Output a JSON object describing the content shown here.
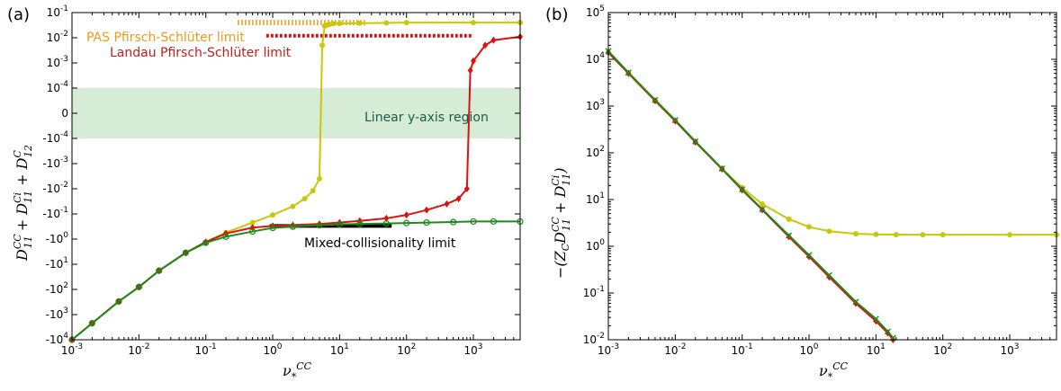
{
  "chart_data": [
    {
      "type": "line",
      "panel_label": "(a)",
      "xlabel": "ν*CC",
      "ylabel": "D11CC + D11Ci + D12C",
      "x_scale": "log",
      "xlim": [
        0.001,
        5000
      ],
      "y_scale": "symlog",
      "y_linear_threshold": 0.0001,
      "ylim": [
        -10000,
        0.1
      ],
      "x_tick_labels": [
        "10-3",
        "10-2",
        "10-1",
        "100",
        "101",
        "102",
        "103"
      ],
      "y_tick_labels": [
        "-104",
        "-103",
        "-102",
        "-101",
        "-100",
        "-10-1",
        "-10-2",
        "-10-3",
        "-10-4",
        "0",
        "10-4",
        "10-3",
        "10-2",
        "10-1"
      ],
      "linear_region": {
        "label": "Linear y-axis region",
        "y_range": [
          -0.0001,
          0.0001
        ],
        "color": "#d6ecd6",
        "text_color": "#1a5c4a"
      },
      "reference_lines": [
        {
          "label": "PAS Pfirsch-Schlüter limit",
          "y": 0.04,
          "x_range": [
            0.3,
            25
          ],
          "color": "#ee9a1a"
        },
        {
          "label": "Landau Pfirsch-Schlüter limit",
          "y": 0.012,
          "x_range": [
            0.8,
            1000
          ],
          "color": "#c81a1a"
        },
        {
          "label": "Mixed-collisionality limit",
          "y": -0.3,
          "x_range": [
            0.9,
            60
          ],
          "color": "#000000"
        }
      ],
      "series": [
        {
          "color": "#c8c80a",
          "marker": "circle",
          "x": [
            0.001,
            0.002,
            0.005,
            0.01,
            0.02,
            0.05,
            0.1,
            0.2,
            0.5,
            1,
            2,
            3,
            4,
            5,
            5.5,
            6,
            6.5,
            7,
            8,
            10,
            20,
            50,
            100,
            1000,
            5000
          ],
          "y": [
            -10000,
            -2200,
            -300,
            -80,
            -18,
            -3.5,
            -1.3,
            -0.55,
            -0.22,
            -0.11,
            -0.05,
            -0.025,
            -0.012,
            -0.004,
            0.005,
            0.03,
            0.032,
            0.034,
            0.036,
            0.037,
            0.038,
            0.039,
            0.04,
            0.04,
            0.04
          ]
        },
        {
          "color": "#e01010",
          "marker": "diamond",
          "x": [
            0.001,
            0.002,
            0.005,
            0.01,
            0.02,
            0.05,
            0.1,
            0.2,
            0.5,
            1,
            2,
            5,
            10,
            20,
            50,
            100,
            200,
            400,
            600,
            800,
            900,
            1000,
            1500,
            2000,
            5000
          ],
          "y": [
            -10000,
            -2200,
            -300,
            -80,
            -18,
            -3.5,
            -1.3,
            -0.6,
            -0.35,
            -0.3,
            -0.28,
            -0.25,
            -0.22,
            -0.19,
            -0.15,
            -0.11,
            -0.07,
            -0.04,
            -0.025,
            -0.01,
            0.0005,
            0.0012,
            0.005,
            0.008,
            0.011
          ]
        },
        {
          "color": "#1a8c1a",
          "marker": "circle-open",
          "x": [
            0.001,
            0.002,
            0.005,
            0.01,
            0.02,
            0.05,
            0.1,
            0.2,
            0.5,
            1,
            2,
            5,
            10,
            20,
            50,
            100,
            200,
            500,
            1000,
            2000,
            5000
          ],
          "y": [
            -10000,
            -2200,
            -300,
            -80,
            -18,
            -3.5,
            -1.4,
            -0.8,
            -0.5,
            -0.36,
            -0.32,
            -0.28,
            -0.26,
            -0.25,
            -0.24,
            -0.23,
            -0.22,
            -0.21,
            -0.2,
            -0.2,
            -0.2
          ]
        }
      ]
    },
    {
      "type": "line",
      "panel_label": "(b)",
      "xlabel": "ν*CC",
      "ylabel": "−(ZC D11CC + D11Ci)",
      "x_scale": "log",
      "xlim": [
        0.001,
        5000
      ],
      "y_scale": "log",
      "ylim": [
        0.01,
        100000
      ],
      "x_tick_labels": [
        "10-3",
        "10-2",
        "10-1",
        "100",
        "101",
        "102",
        "103"
      ],
      "y_tick_labels": [
        "10-2",
        "10-1",
        "100",
        "101",
        "102",
        "103",
        "104",
        "105"
      ],
      "series": [
        {
          "color": "#c8c80a",
          "marker": "circle",
          "x": [
            0.001,
            0.002,
            0.005,
            0.01,
            0.02,
            0.05,
            0.1,
            0.2,
            0.5,
            1,
            2,
            5,
            10,
            20,
            50,
            100,
            1000,
            5000
          ],
          "y": [
            14000,
            5000,
            1300,
            480,
            170,
            45,
            18,
            8,
            3.8,
            2.6,
            2.1,
            1.85,
            1.8,
            1.78,
            1.77,
            1.77,
            1.77,
            1.77
          ]
        },
        {
          "color": "#e01010",
          "marker": "diamond",
          "x": [
            0.001,
            0.002,
            0.005,
            0.01,
            0.02,
            0.05,
            0.1,
            0.2,
            0.5,
            1,
            2,
            5,
            10,
            15,
            18
          ],
          "y": [
            14000,
            5000,
            1300,
            480,
            170,
            45,
            16,
            6,
            1.6,
            0.6,
            0.22,
            0.06,
            0.025,
            0.014,
            0.01
          ]
        },
        {
          "color": "#1a8c1a",
          "marker": "x",
          "x": [
            0.001,
            0.002,
            0.005,
            0.01,
            0.02,
            0.05,
            0.1,
            0.2,
            0.5,
            1,
            2,
            5,
            10,
            15,
            18
          ],
          "y": [
            15000,
            5200,
            1350,
            500,
            175,
            46,
            16.5,
            6.2,
            1.7,
            0.65,
            0.24,
            0.065,
            0.028,
            0.015,
            0.011
          ]
        }
      ]
    }
  ]
}
